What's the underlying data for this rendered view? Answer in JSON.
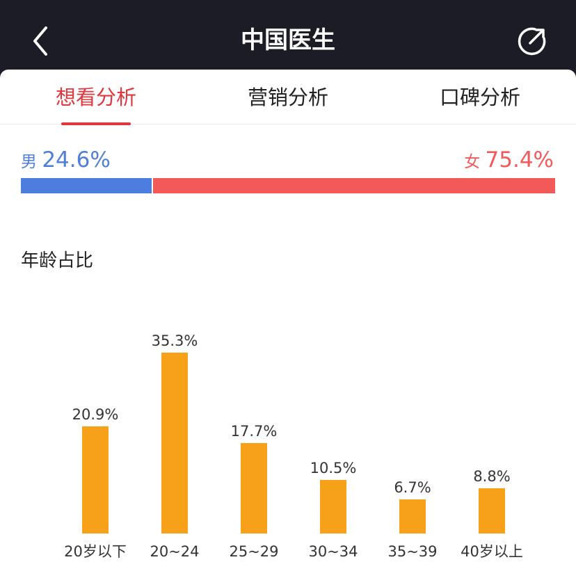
{
  "nav": {
    "title": "中国医生",
    "back_icon": "chevron-left-icon",
    "share_icon": "share-icon"
  },
  "tabs": [
    {
      "label": "想看分析",
      "active": true
    },
    {
      "label": "营销分析",
      "active": false
    },
    {
      "label": "口碑分析",
      "active": false
    }
  ],
  "gender": {
    "male_label": "男",
    "male_pct": "24.6%",
    "male_value": 24.6,
    "female_label": "女",
    "female_pct": "75.4%",
    "female_value": 75.4,
    "male_color": "#4d7ddf",
    "female_color": "#f4595a"
  },
  "age": {
    "title": "年龄占比"
  },
  "chart_data": {
    "type": "bar",
    "categories": [
      "20岁以下",
      "20~24",
      "25~29",
      "30~34",
      "35~39",
      "40岁以上"
    ],
    "values": [
      20.9,
      35.3,
      17.7,
      10.5,
      6.7,
      8.8
    ],
    "labels": [
      "20.9%",
      "35.3%",
      "17.7%",
      "10.5%",
      "6.7%",
      "8.8%"
    ],
    "bar_color": "#f7a11a"
  },
  "colors": {
    "accent": "#e0363c",
    "nav_bg": "#1c1c27"
  }
}
